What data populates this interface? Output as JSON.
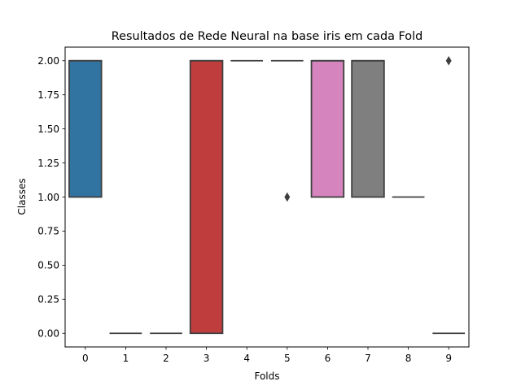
{
  "chart_data": {
    "type": "box",
    "title": "Resultados de Rede Neural na base iris em cada Fold",
    "xlabel": "Folds",
    "ylabel": "Classes",
    "categories": [
      "0",
      "1",
      "2",
      "3",
      "4",
      "5",
      "6",
      "7",
      "8",
      "9"
    ],
    "yticks": [
      "0.00",
      "0.25",
      "0.50",
      "0.75",
      "1.00",
      "1.25",
      "1.50",
      "1.75",
      "2.00"
    ],
    "ytick_values": [
      0,
      0.25,
      0.5,
      0.75,
      1,
      1.25,
      1.5,
      1.75,
      2
    ],
    "ylim": [
      -0.1,
      2.1
    ],
    "grid": false,
    "boxes": [
      {
        "category": "0",
        "q1": 1,
        "median": 2,
        "q3": 2,
        "whisker_low": 1,
        "whisker_high": 2,
        "outliers": [],
        "color": "#3274a1"
      },
      {
        "category": "1",
        "q1": 0,
        "median": 0,
        "q3": 0,
        "whisker_low": 0,
        "whisker_high": 0,
        "outliers": [],
        "color": "#e1812c"
      },
      {
        "category": "2",
        "q1": 0,
        "median": 0,
        "q3": 0,
        "whisker_low": 0,
        "whisker_high": 0,
        "outliers": [],
        "color": "#3a923a"
      },
      {
        "category": "3",
        "q1": 0,
        "median": 2,
        "q3": 2,
        "whisker_low": 0,
        "whisker_high": 2,
        "outliers": [],
        "color": "#c03d3e"
      },
      {
        "category": "4",
        "q1": 2,
        "median": 2,
        "q3": 2,
        "whisker_low": 2,
        "whisker_high": 2,
        "outliers": [],
        "color": "#9372b2"
      },
      {
        "category": "5",
        "q1": 2,
        "median": 2,
        "q3": 2,
        "whisker_low": 2,
        "whisker_high": 2,
        "outliers": [
          1
        ],
        "color": "#845b53"
      },
      {
        "category": "6",
        "q1": 1,
        "median": 2,
        "q3": 2,
        "whisker_low": 1,
        "whisker_high": 2,
        "outliers": [],
        "color": "#d684bd"
      },
      {
        "category": "7",
        "q1": 1,
        "median": 2,
        "q3": 2,
        "whisker_low": 1,
        "whisker_high": 2,
        "outliers": [],
        "color": "#7f7f7f"
      },
      {
        "category": "8",
        "q1": 1,
        "median": 1,
        "q3": 1,
        "whisker_low": 1,
        "whisker_high": 1,
        "outliers": [],
        "color": "#a9aa35"
      },
      {
        "category": "9",
        "q1": 0,
        "median": 0,
        "q3": 0,
        "whisker_low": 0,
        "whisker_high": 0,
        "outliers": [
          2
        ],
        "color": "#2d9fae"
      }
    ],
    "line_color": "#3f3f3f"
  }
}
